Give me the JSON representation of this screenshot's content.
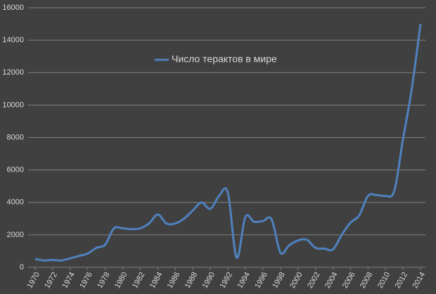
{
  "chart_data": {
    "type": "line",
    "x": [
      1970,
      1971,
      1972,
      1973,
      1974,
      1975,
      1976,
      1977,
      1978,
      1979,
      1980,
      1981,
      1982,
      1983,
      1984,
      1985,
      1986,
      1987,
      1988,
      1989,
      1990,
      1991,
      1992,
      1993,
      1994,
      1995,
      1996,
      1997,
      1998,
      1999,
      2000,
      2001,
      2002,
      2003,
      2004,
      2005,
      2006,
      2007,
      2008,
      2009,
      2010,
      2011,
      2012,
      2013,
      2014
    ],
    "series": [
      {
        "name": "Число терактов в мире",
        "color": "#4f81bd",
        "values": [
          520,
          420,
          450,
          420,
          550,
          700,
          850,
          1200,
          1400,
          2400,
          2400,
          2350,
          2400,
          2700,
          3250,
          2700,
          2700,
          3000,
          3500,
          4000,
          3600,
          4400,
          4600,
          600,
          3100,
          2800,
          2850,
          2950,
          900,
          1350,
          1650,
          1700,
          1200,
          1150,
          1100,
          2000,
          2750,
          3200,
          4400,
          4450,
          4400,
          4700,
          7900,
          11000,
          15000
        ]
      }
    ],
    "xlim": [
      1970,
      2014
    ],
    "xticks": [
      1970,
      1972,
      1974,
      1976,
      1978,
      1980,
      1982,
      1984,
      1986,
      1988,
      1990,
      1992,
      1994,
      1996,
      1998,
      2000,
      2002,
      2004,
      2006,
      2008,
      2010,
      2012,
      2014
    ],
    "ylim": [
      0,
      16000
    ],
    "yticks": [
      0,
      2000,
      4000,
      6000,
      8000,
      10000,
      12000,
      14000,
      16000
    ],
    "grid": true
  }
}
